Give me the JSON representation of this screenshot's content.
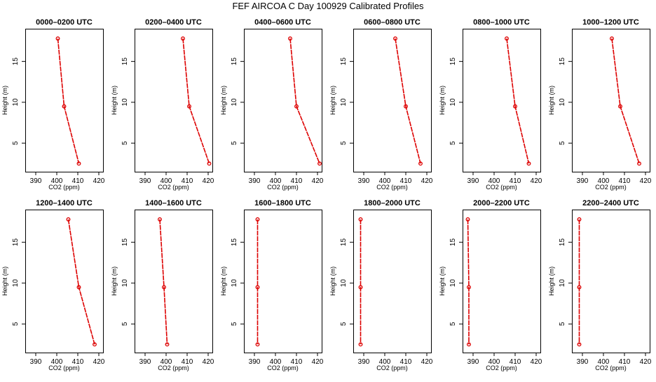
{
  "figure_title": "FEF AIRCOA C  Day 100929  Calibrated Profiles",
  "chart_data": [
    {
      "type": "line",
      "title": "0000–0200 UTC",
      "xlabel": "CO2 (ppm)",
      "ylabel": "Height (m)",
      "xlim": [
        385,
        422
      ],
      "ylim": [
        1.5,
        19
      ],
      "xticks": [
        "390",
        "400",
        "410",
        "420"
      ],
      "yticks": [
        "5",
        "10",
        "15"
      ],
      "x": [
        400.5,
        403.5,
        410.5
      ],
      "y": [
        17.8,
        9.5,
        2.5
      ]
    },
    {
      "type": "line",
      "title": "0200–0400 UTC",
      "xlabel": "CO2 (ppm)",
      "ylabel": "Height (m)",
      "xlim": [
        385,
        422
      ],
      "ylim": [
        1.5,
        19
      ],
      "xticks": [
        "390",
        "400",
        "410",
        "420"
      ],
      "yticks": [
        "5",
        "10",
        "15"
      ],
      "x": [
        408.0,
        411.0,
        420.5
      ],
      "y": [
        17.8,
        9.5,
        2.5
      ]
    },
    {
      "type": "line",
      "title": "0400–0600 UTC",
      "xlabel": "CO2 (ppm)",
      "ylabel": "Height (m)",
      "xlim": [
        385,
        422
      ],
      "ylim": [
        1.5,
        19
      ],
      "xticks": [
        "390",
        "400",
        "410",
        "420"
      ],
      "yticks": [
        "5",
        "10",
        "15"
      ],
      "x": [
        407.0,
        410.0,
        421.0
      ],
      "y": [
        17.8,
        9.5,
        2.5
      ]
    },
    {
      "type": "line",
      "title": "0600–0800 UTC",
      "xlabel": "CO2 (ppm)",
      "ylabel": "Height (m)",
      "xlim": [
        385,
        422
      ],
      "ylim": [
        1.5,
        19
      ],
      "xticks": [
        "390",
        "400",
        "410",
        "420"
      ],
      "yticks": [
        "5",
        "10",
        "15"
      ],
      "x": [
        405.0,
        410.0,
        417.0
      ],
      "y": [
        17.8,
        9.5,
        2.5
      ]
    },
    {
      "type": "line",
      "title": "0800–1000 UTC",
      "xlabel": "CO2 (ppm)",
      "ylabel": "Height (m)",
      "xlim": [
        385,
        422
      ],
      "ylim": [
        1.5,
        19
      ],
      "xticks": [
        "390",
        "400",
        "410",
        "420"
      ],
      "yticks": [
        "5",
        "10",
        "15"
      ],
      "x": [
        406.0,
        410.0,
        416.5
      ],
      "y": [
        17.8,
        9.5,
        2.5
      ]
    },
    {
      "type": "line",
      "title": "1000–1200 UTC",
      "xlabel": "CO2 (ppm)",
      "ylabel": "Height (m)",
      "xlim": [
        385,
        422
      ],
      "ylim": [
        1.5,
        19
      ],
      "xticks": [
        "390",
        "400",
        "410",
        "420"
      ],
      "yticks": [
        "5",
        "10",
        "15"
      ],
      "x": [
        404.0,
        408.0,
        417.0
      ],
      "y": [
        17.8,
        9.5,
        2.5
      ]
    },
    {
      "type": "line",
      "title": "1200–1400 UTC",
      "xlabel": "CO2 (ppm)",
      "ylabel": "Height (m)",
      "xlim": [
        385,
        422
      ],
      "ylim": [
        1.5,
        19
      ],
      "xticks": [
        "390",
        "400",
        "410",
        "420"
      ],
      "yticks": [
        "5",
        "10",
        "15"
      ],
      "x": [
        405.5,
        410.5,
        418.0
      ],
      "y": [
        17.8,
        9.5,
        2.5
      ]
    },
    {
      "type": "line",
      "title": "1400–1600 UTC",
      "xlabel": "CO2 (ppm)",
      "ylabel": "Height (m)",
      "xlim": [
        385,
        422
      ],
      "ylim": [
        1.5,
        19
      ],
      "xticks": [
        "390",
        "400",
        "410",
        "420"
      ],
      "yticks": [
        "5",
        "10",
        "15"
      ],
      "x": [
        397.0,
        399.0,
        400.5
      ],
      "y": [
        17.8,
        9.5,
        2.5
      ]
    },
    {
      "type": "line",
      "title": "1600–1800 UTC",
      "xlabel": "CO2 (ppm)",
      "ylabel": "Height (m)",
      "xlim": [
        385,
        422
      ],
      "ylim": [
        1.5,
        19
      ],
      "xticks": [
        "390",
        "400",
        "410",
        "420"
      ],
      "yticks": [
        "5",
        "10",
        "15"
      ],
      "x": [
        391.5,
        391.5,
        391.5
      ],
      "y": [
        17.8,
        9.5,
        2.5
      ]
    },
    {
      "type": "line",
      "title": "1800–2000 UTC",
      "xlabel": "CO2 (ppm)",
      "ylabel": "Height (m)",
      "xlim": [
        385,
        422
      ],
      "ylim": [
        1.5,
        19
      ],
      "xticks": [
        "390",
        "400",
        "410",
        "420"
      ],
      "yticks": [
        "5",
        "10",
        "15"
      ],
      "x": [
        388.5,
        388.5,
        388.5
      ],
      "y": [
        17.8,
        9.5,
        2.5
      ]
    },
    {
      "type": "line",
      "title": "2000–2200 UTC",
      "xlabel": "CO2 (ppm)",
      "ylabel": "Height (m)",
      "xlim": [
        385,
        422
      ],
      "ylim": [
        1.5,
        19
      ],
      "xticks": [
        "390",
        "400",
        "410",
        "420"
      ],
      "yticks": [
        "5",
        "10",
        "15"
      ],
      "x": [
        387.5,
        388.0,
        388.0
      ],
      "y": [
        17.8,
        9.5,
        2.5
      ]
    },
    {
      "type": "line",
      "title": "2200–2400 UTC",
      "xlabel": "CO2 (ppm)",
      "ylabel": "Height (m)",
      "xlim": [
        385,
        422
      ],
      "ylim": [
        1.5,
        19
      ],
      "xticks": [
        "390",
        "400",
        "410",
        "420"
      ],
      "yticks": [
        "5",
        "10",
        "15"
      ],
      "x": [
        388.5,
        388.5,
        388.5
      ],
      "y": [
        17.8,
        9.5,
        2.5
      ]
    }
  ],
  "colors": {
    "line": "#dd0000",
    "marker": "#dd0000",
    "axis": "#000000"
  }
}
